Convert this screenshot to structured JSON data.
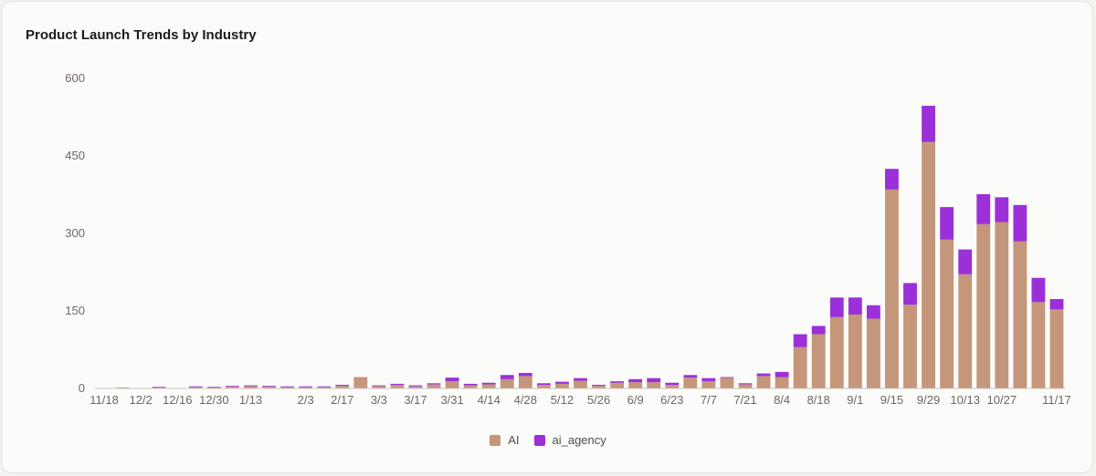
{
  "chart_data": {
    "type": "bar",
    "stacked": true,
    "title": "Product Launch Trends by Industry",
    "xlabel": "",
    "ylabel": "",
    "ylim": [
      0,
      600
    ],
    "yticks": [
      0,
      150,
      300,
      450,
      600
    ],
    "grid": false,
    "legend_position": "bottom-center",
    "categories": [
      "11/18",
      "11/25",
      "12/2",
      "12/9",
      "12/16",
      "12/23",
      "12/30",
      "1/6",
      "1/13",
      "1/20",
      "1/27",
      "2/3",
      "2/10",
      "2/17",
      "2/24",
      "3/3",
      "3/10",
      "3/17",
      "3/24",
      "3/31",
      "4/7",
      "4/14",
      "4/21",
      "4/28",
      "5/5",
      "5/12",
      "5/19",
      "5/26",
      "6/2",
      "6/9",
      "6/16",
      "6/23",
      "6/30",
      "7/7",
      "7/14",
      "7/21",
      "7/28",
      "8/4",
      "8/11",
      "8/18",
      "8/25",
      "9/1",
      "9/8",
      "9/15",
      "9/22",
      "9/29",
      "10/6",
      "10/13",
      "10/20",
      "10/27",
      "11/3",
      "11/10",
      "11/17"
    ],
    "tick_labels": [
      "11/18",
      "",
      "12/2",
      "",
      "12/16",
      "",
      "12/30",
      "",
      "1/13",
      "",
      "",
      "2/3",
      "",
      "2/17",
      "",
      "3/3",
      "",
      "3/17",
      "",
      "3/31",
      "",
      "4/14",
      "",
      "4/28",
      "",
      "5/12",
      "",
      "5/26",
      "",
      "6/9",
      "",
      "6/23",
      "",
      "7/7",
      "",
      "7/21",
      "",
      "8/4",
      "",
      "8/18",
      "",
      "9/1",
      "",
      "9/15",
      "",
      "9/29",
      "",
      "10/13",
      "",
      "10/27",
      "",
      "",
      "11/17"
    ],
    "series": [
      {
        "name": "AI",
        "color": "#c4967a",
        "values": [
          1,
          2,
          1,
          2,
          1,
          3,
          2,
          4,
          5,
          4,
          3,
          3,
          3,
          5,
          22,
          5,
          7,
          4,
          8,
          14,
          6,
          8,
          18,
          24,
          7,
          9,
          15,
          5,
          11,
          12,
          12,
          7,
          21,
          14,
          21,
          8,
          24,
          22,
          80,
          105,
          138,
          143,
          135,
          385,
          162,
          477,
          288,
          221,
          318,
          322,
          285,
          167,
          153
        ]
      },
      {
        "name": "ai_agency",
        "color": "#9b30d9",
        "values": [
          0,
          0,
          0,
          1,
          0,
          1,
          1,
          1,
          1,
          1,
          1,
          1,
          1,
          2,
          0,
          1,
          2,
          2,
          2,
          7,
          3,
          3,
          8,
          6,
          3,
          4,
          5,
          2,
          3,
          6,
          8,
          4,
          5,
          6,
          1,
          2,
          5,
          10,
          25,
          16,
          38,
          33,
          26,
          40,
          42,
          70,
          63,
          48,
          58,
          48,
          70,
          47,
          20
        ]
      }
    ]
  }
}
